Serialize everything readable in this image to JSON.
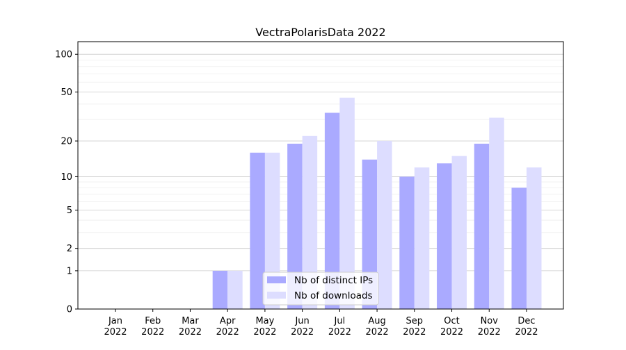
{
  "chart_data": {
    "type": "bar",
    "title": "VectraPolarisData 2022",
    "xlabel": "",
    "ylabel": "",
    "yscale": "log(1+y)",
    "ylim": [
      0,
      126
    ],
    "grid": true,
    "legend_position": "lower-center",
    "categories": [
      "Jan\n2022",
      "Feb\n2022",
      "Mar\n2022",
      "Apr\n2022",
      "May\n2022",
      "Jun\n2022",
      "Jul\n2022",
      "Aug\n2022",
      "Sep\n2022",
      "Oct\n2022",
      "Nov\n2022",
      "Dec\n2022"
    ],
    "category_labels": [
      [
        "Jan",
        "2022"
      ],
      [
        "Feb",
        "2022"
      ],
      [
        "Mar",
        "2022"
      ],
      [
        "Apr",
        "2022"
      ],
      [
        "May",
        "2022"
      ],
      [
        "Jun",
        "2022"
      ],
      [
        "Jul",
        "2022"
      ],
      [
        "Aug",
        "2022"
      ],
      [
        "Sep",
        "2022"
      ],
      [
        "Oct",
        "2022"
      ],
      [
        "Nov",
        "2022"
      ],
      [
        "Dec",
        "2022"
      ]
    ],
    "yticks": [
      0,
      1,
      2,
      5,
      10,
      20,
      50,
      100
    ],
    "ytick_labels": [
      "0",
      "1",
      "2",
      "5",
      "10",
      "20",
      "50",
      "100"
    ],
    "series": [
      {
        "name": "Nb of distinct IPs",
        "color": "#aaaaff",
        "values": [
          0,
          0,
          0,
          1,
          16,
          19,
          34,
          14,
          10,
          13,
          19,
          8
        ]
      },
      {
        "name": "Nb of downloads",
        "color": "#ddddff",
        "values": [
          0,
          0,
          0,
          1,
          16,
          22,
          45,
          20,
          12,
          15,
          31,
          12
        ]
      }
    ]
  }
}
